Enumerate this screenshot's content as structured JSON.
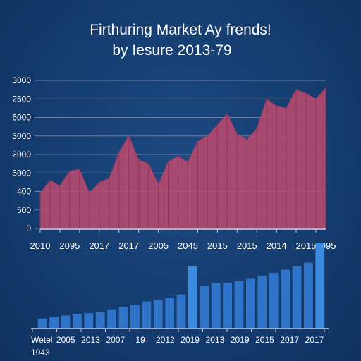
{
  "header": {
    "title": "Firthuring Market Ay frends!",
    "subtitle": "by Iesure 2013-79"
  },
  "colors": {
    "background": "#163f73",
    "area_fill": "#b24a6e",
    "area_line": "#9c3a60",
    "grid": "#6b7fa6",
    "bar": "#2f74c8",
    "bar_highlight": "#3b8be0"
  },
  "chart_data": [
    {
      "type": "area",
      "title": "Firthuring Market Ay frends!",
      "subtitle": "by Iesure 2013-79",
      "y_tick_labels": [
        "3000",
        "2600",
        "6000",
        "3000",
        "2000",
        "5000",
        "400",
        "500",
        "0"
      ],
      "y_tick_values": [
        8,
        7,
        6,
        5,
        4,
        3,
        2,
        1,
        0
      ],
      "ylim": [
        0,
        8
      ],
      "x_tick_labels": [
        "2010",
        "2095",
        "2017",
        "2017",
        "2005",
        "2045",
        "2015",
        "2015",
        "2014",
        "2015",
        "2095"
      ],
      "x_tick_index": [
        0,
        3,
        6,
        9,
        12,
        15,
        18,
        21,
        24,
        27,
        29
      ],
      "grid": true,
      "values": [
        1.9,
        2.6,
        2.3,
        3.1,
        3.2,
        1.9,
        2.5,
        2.7,
        4.1,
        5.0,
        3.7,
        3.5,
        2.4,
        3.6,
        3.9,
        3.6,
        4.7,
        5.0,
        5.6,
        6.2,
        5.1,
        4.8,
        5.4,
        7.0,
        6.6,
        6.5,
        7.5,
        7.3,
        7.0,
        7.6
      ]
    },
    {
      "type": "bar",
      "x_tick_labels": [
        "Wetel",
        "2005",
        "2013",
        "2007",
        "19",
        "2012",
        "2019",
        "2013",
        "2019",
        "2015",
        "2017",
        "2017"
      ],
      "x_extra_label": "1943",
      "grid": false,
      "values": [
        1.2,
        1.4,
        1.6,
        1.8,
        1.9,
        2.0,
        2.4,
        2.7,
        3.0,
        3.4,
        3.6,
        3.9,
        4.3,
        8.0,
        5.4,
        5.8,
        5.8,
        6.0,
        6.4,
        6.7,
        7.1,
        7.5,
        8.0,
        8.4,
        11.0
      ],
      "ylim": [
        0,
        11
      ]
    }
  ]
}
